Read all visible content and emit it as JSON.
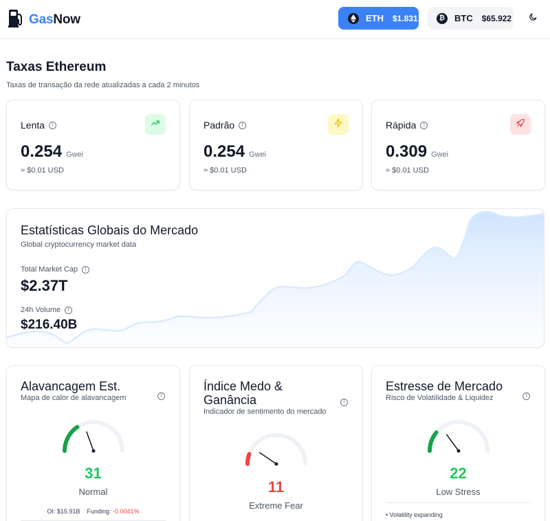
{
  "header": {
    "brand_part1": "Gas",
    "brand_part2": "Now",
    "eth": {
      "symbol": "ETH",
      "price": "$1.831"
    },
    "btc": {
      "symbol": "BTC",
      "price": "$65.922",
      "icon_glyph": "₿"
    }
  },
  "page": {
    "title": "Taxas Ethereum",
    "subtitle": "Taxas de transação da rede atualizadas a cada 2 minutos"
  },
  "fees": [
    {
      "label": "Lenta",
      "value": "0.254",
      "unit": "Gwei",
      "usd": "≈ $0.01 USD",
      "icon": "trending-up-icon",
      "accent": "#22c55e"
    },
    {
      "label": "Padrão",
      "value": "0.254",
      "unit": "Gwei",
      "usd": "≈ $0.01 USD",
      "icon": "lightning-icon",
      "accent": "#eab308"
    },
    {
      "label": "Rápida",
      "value": "0.309",
      "unit": "Gwei",
      "usd": "≈ $0.01 USD",
      "icon": "rocket-icon",
      "accent": "#ef4444"
    }
  ],
  "market": {
    "title": "Estatísticas Globais do Mercado",
    "subtitle": "Global cryptocurrency market data",
    "cap_label": "Total Market Cap",
    "cap_value": "$2.37T",
    "vol_label": "24h Volume",
    "vol_value": "$216.40B"
  },
  "gauges": {
    "leverage": {
      "title": "Alavancagem Est.",
      "subtitle": "Mapa de calor de alavancagem",
      "value": "31",
      "value_num": 31,
      "label": "Normal",
      "oi_text": "OI: $15.91B",
      "funding_label": "Funding:",
      "funding_value": "-0.0041%"
    },
    "fear": {
      "title": "Índice Medo & Ganância",
      "subtitle": "Indicador de sentimento do mercado",
      "value": "11",
      "value_num": 11,
      "label": "Extreme Fear"
    },
    "stress": {
      "title": "Estresse de Mercado",
      "subtitle": "Risco de Volatilidade & Liquidez",
      "value": "22",
      "value_num": 22,
      "label": "Low Stress",
      "bullet": "• Volatility expanding"
    }
  },
  "colors": {
    "accent": "#3b82f6",
    "positive": "#22c55e",
    "negative": "#ef4444",
    "gauge_track": "#eef2f7"
  }
}
